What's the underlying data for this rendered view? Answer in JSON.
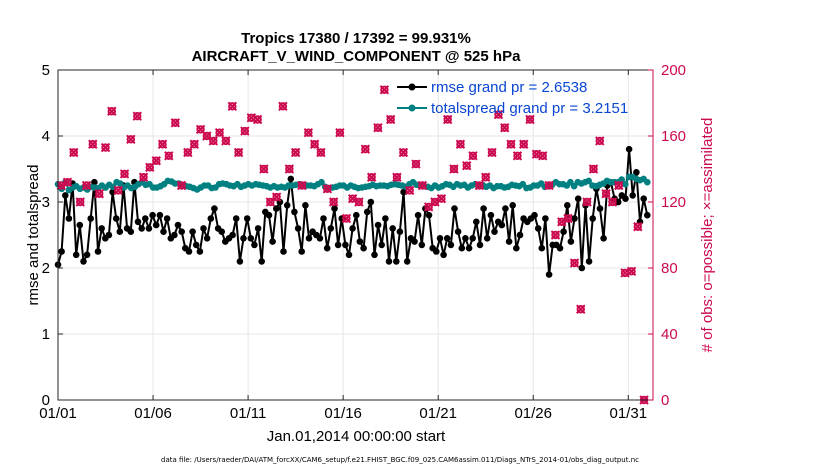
{
  "chart_data": {
    "type": "line",
    "title": "Tropics 17380 / 17392 = 99.931%",
    "subtitle": "AIRCRAFT_V_WIND_COMPONENT @ 525 hPa",
    "xlabel": "Jan.01,2014 00:00:00 start",
    "ylabel": "rmse and totalspread",
    "y2label": "# of obs: o=possible; ×=assimilated",
    "xlim": [
      1,
      32.3
    ],
    "ylim": [
      0,
      5
    ],
    "y2lim": [
      0,
      200
    ],
    "xticks": [
      1,
      6,
      11,
      16,
      21,
      26,
      31
    ],
    "xtick_labels": [
      "01/01",
      "01/06",
      "01/11",
      "01/16",
      "01/21",
      "01/26",
      "01/31"
    ],
    "yticks": [
      "0",
      "1",
      "2",
      "3",
      "4",
      "5"
    ],
    "y2ticks": [
      "0",
      "40",
      "80",
      "120",
      "160",
      "200"
    ],
    "grid": true,
    "legend_position": "top-right",
    "colors": {
      "rmse": "#000000",
      "spread": "#008080",
      "obs": "#cc0a50",
      "legend_text": "#0a46d2"
    },
    "series": [
      {
        "name": "rmse grand pr = 2.6538",
        "axis": "left",
        "marker": "dot",
        "values": [
          2.05,
          2.25,
          3.1,
          2.75,
          3.28,
          2.2,
          2.65,
          2.1,
          2.2,
          2.75,
          3.3,
          2.25,
          2.6,
          2.45,
          2.5,
          3.15,
          2.75,
          2.55,
          3.25,
          2.6,
          2.55,
          3.3,
          2.7,
          2.6,
          2.75,
          2.6,
          2.8,
          2.65,
          2.8,
          2.55,
          2.75,
          2.45,
          2.5,
          2.65,
          2.55,
          2.3,
          2.25,
          2.55,
          2.35,
          2.25,
          2.6,
          2.45,
          2.75,
          2.9,
          2.6,
          2.55,
          2.4,
          2.45,
          2.5,
          2.75,
          2.1,
          2.45,
          2.75,
          2.45,
          2.35,
          2.6,
          2.1,
          2.85,
          2.8,
          2.4,
          2.9,
          3.0,
          2.25,
          2.95,
          3.35,
          2.85,
          2.6,
          2.25,
          2.95,
          2.45,
          2.55,
          2.5,
          2.45,
          2.75,
          2.3,
          2.6,
          2.9,
          2.35,
          2.75,
          2.35,
          2.2,
          2.6,
          2.8,
          2.4,
          2.3,
          2.85,
          3.0,
          2.2,
          2.65,
          2.35,
          2.75,
          2.1,
          2.6,
          2.1,
          2.55,
          3.15,
          2.1,
          2.45,
          2.4,
          2.8,
          2.35,
          2.9,
          2.8,
          2.3,
          2.25,
          2.45,
          2.2,
          2.45,
          2.35,
          2.9,
          2.55,
          2.3,
          2.45,
          2.3,
          2.45,
          2.7,
          2.35,
          2.9,
          2.45,
          2.8,
          2.55,
          2.7,
          2.65,
          2.9,
          2.4,
          2.95,
          2.3,
          2.5,
          2.75,
          2.7,
          2.75,
          2.8,
          2.6,
          2.3,
          2.75,
          1.9,
          2.35,
          2.35,
          2.3,
          2.55,
          2.95,
          2.4,
          2.75,
          3.05,
          2.0,
          2.95,
          2.1,
          2.75,
          3.2,
          2.9,
          2.45,
          3.25,
          3.3,
          3.05,
          3.0,
          3.1,
          3.05,
          3.8,
          3.1,
          3.45,
          2.7,
          3.05,
          2.8
        ]
      },
      {
        "name": "totalspread grand pr = 3.2151",
        "axis": "left",
        "marker": "dot",
        "values": [
          3.27,
          3.2,
          3.3,
          3.18,
          3.22,
          3.24,
          3.2,
          3.22,
          3.19,
          3.23,
          3.22,
          3.21,
          3.25,
          3.22,
          3.26,
          3.23,
          3.3,
          3.28,
          3.22,
          3.25,
          3.21,
          3.23,
          3.27,
          3.3,
          3.26,
          3.27,
          3.22,
          3.22,
          3.24,
          3.27,
          3.32,
          3.31,
          3.28,
          3.28,
          3.26,
          3.24,
          3.23,
          3.21,
          3.19,
          3.22,
          3.25,
          3.25,
          3.21,
          3.22,
          3.27,
          3.28,
          3.27,
          3.25,
          3.24,
          3.27,
          3.23,
          3.25,
          3.27,
          3.25,
          3.27,
          3.26,
          3.25,
          3.24,
          3.22,
          3.24,
          3.22,
          3.23,
          3.22,
          3.25,
          3.25,
          3.26,
          3.27,
          3.25,
          3.25,
          3.25,
          3.24,
          3.27,
          3.3,
          3.23,
          3.21,
          3.22,
          3.23,
          3.25,
          3.25,
          3.22,
          3.25,
          3.23,
          3.21,
          3.22,
          3.23,
          3.24,
          3.26,
          3.24,
          3.25,
          3.25,
          3.24,
          3.26,
          3.27,
          3.26,
          3.25,
          3.23,
          3.27,
          3.3,
          3.26,
          3.25,
          3.24,
          3.23,
          3.21,
          3.25,
          3.22,
          3.24,
          3.27,
          3.26,
          3.23,
          3.27,
          3.25,
          3.26,
          3.22,
          3.25,
          3.27,
          3.25,
          3.26,
          3.23,
          3.25,
          3.21,
          3.24,
          3.24,
          3.22,
          3.23,
          3.26,
          3.25,
          3.24,
          3.27,
          3.21,
          3.22,
          3.25,
          3.25,
          3.28,
          3.23,
          3.25,
          3.26,
          3.3,
          3.27,
          3.27,
          3.25,
          3.3,
          3.24,
          3.3,
          3.28,
          3.3,
          3.32,
          3.25,
          3.24,
          3.26,
          3.28,
          3.32,
          3.3,
          3.3,
          3.3,
          3.34,
          3.27,
          3.38,
          3.38,
          3.35,
          3.33,
          3.35,
          3.3
        ]
      }
    ],
    "obs_counts": {
      "axis": "right",
      "marker": "cross",
      "points": [
        [
          1.17,
          130
        ],
        [
          1.5,
          132
        ],
        [
          1.83,
          150
        ],
        [
          2.17,
          120
        ],
        [
          2.5,
          130
        ],
        [
          2.83,
          155
        ],
        [
          3.17,
          125
        ],
        [
          3.5,
          153
        ],
        [
          3.83,
          175
        ],
        [
          4.17,
          127
        ],
        [
          4.5,
          137
        ],
        [
          4.83,
          158
        ],
        [
          5.17,
          172
        ],
        [
          5.5,
          135
        ],
        [
          5.83,
          141
        ],
        [
          6.17,
          145
        ],
        [
          6.5,
          155
        ],
        [
          6.83,
          148
        ],
        [
          7.17,
          168
        ],
        [
          7.5,
          130
        ],
        [
          7.83,
          150
        ],
        [
          8.17,
          155
        ],
        [
          8.5,
          164
        ],
        [
          8.83,
          160
        ],
        [
          9.17,
          157
        ],
        [
          9.5,
          162
        ],
        [
          9.83,
          157
        ],
        [
          10.17,
          178
        ],
        [
          10.5,
          150
        ],
        [
          10.83,
          163
        ],
        [
          11.17,
          171
        ],
        [
          11.5,
          170
        ],
        [
          11.83,
          140
        ],
        [
          12.17,
          120
        ],
        [
          12.5,
          123
        ],
        [
          12.83,
          178
        ],
        [
          13.17,
          140
        ],
        [
          13.5,
          150
        ],
        [
          13.83,
          130
        ],
        [
          14.17,
          162
        ],
        [
          14.5,
          155
        ],
        [
          14.83,
          150
        ],
        [
          15.17,
          128
        ],
        [
          15.5,
          120
        ],
        [
          15.83,
          162
        ],
        [
          16.17,
          110
        ],
        [
          16.5,
          122
        ],
        [
          16.83,
          120
        ],
        [
          17.17,
          152
        ],
        [
          17.5,
          135
        ],
        [
          17.83,
          165
        ],
        [
          18.17,
          188
        ],
        [
          18.5,
          170
        ],
        [
          18.83,
          135
        ],
        [
          19.17,
          150
        ],
        [
          19.5,
          127
        ],
        [
          19.83,
          143
        ],
        [
          20.17,
          130
        ],
        [
          20.5,
          117
        ],
        [
          20.83,
          120
        ],
        [
          21.17,
          122
        ],
        [
          21.5,
          170
        ],
        [
          21.83,
          140
        ],
        [
          22.17,
          155
        ],
        [
          22.5,
          142
        ],
        [
          22.83,
          148
        ],
        [
          23.17,
          130
        ],
        [
          23.5,
          135
        ],
        [
          23.83,
          150
        ],
        [
          24.17,
          173
        ],
        [
          24.5,
          165
        ],
        [
          24.83,
          155
        ],
        [
          25.17,
          148
        ],
        [
          25.5,
          155
        ],
        [
          25.83,
          170
        ],
        [
          26.17,
          149
        ],
        [
          26.5,
          148
        ],
        [
          26.83,
          130
        ],
        [
          27.17,
          100
        ],
        [
          27.5,
          108
        ],
        [
          27.83,
          110
        ],
        [
          28.17,
          83
        ],
        [
          28.5,
          55
        ],
        [
          28.83,
          120
        ],
        [
          29.17,
          140
        ],
        [
          29.5,
          157
        ],
        [
          29.83,
          125
        ],
        [
          30.17,
          120
        ],
        [
          30.5,
          130
        ],
        [
          30.83,
          77
        ],
        [
          31.17,
          78
        ],
        [
          31.5,
          105
        ],
        [
          31.83,
          0
        ]
      ]
    }
  },
  "footer": "data file: /Users/raeder/DAI/ATM_forcXX/CAM6_setup/f.e21.FHIST_BGC.f09_025.CAM6assim.011/Diags_NTrS_2014-01/obs_diag_output.nc"
}
